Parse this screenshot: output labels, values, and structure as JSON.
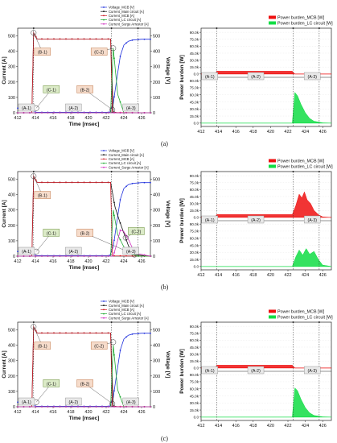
{
  "captions": [
    "(a)",
    "(b)",
    "(c)"
  ],
  "colors": {
    "voltage_mcb": "#2233dd",
    "current_main": "#111111",
    "current_mcb": "#d0202a",
    "current_lc": "#22aa33",
    "current_surge": "#d030c0",
    "power_mcb": "#ee1111",
    "power_lc": "#11dd44",
    "callout_green_fill": "#dcebc8",
    "callout_green_stroke": "#6a8f3a",
    "callout_orange_fill": "#f6dccb",
    "callout_orange_stroke": "#c0784a",
    "callout_gray_fill": "#e8e8e8"
  },
  "chart_data": [
    {
      "type": "line",
      "panel": "a-left",
      "xlabel": "Time [msec]",
      "ylabel": "Current [A]",
      "y2label": "Voltage [V]",
      "xlim": [
        412,
        427
      ],
      "ylim": [
        0,
        550
      ],
      "y2lim": [
        0,
        550
      ],
      "xticks": [
        "412",
        "414",
        "416",
        "418",
        "420",
        "422",
        "424",
        "426"
      ],
      "yticks": [
        "0",
        "100",
        "200",
        "300",
        "400",
        "500"
      ],
      "y2ticks": [
        "0",
        "100",
        "200",
        "300",
        "400",
        "500"
      ],
      "legend_position": "top-right",
      "series": [
        {
          "name": "Voltage_MCB [V]",
          "axis": "right",
          "x": [
            412,
            413.6,
            414,
            422.4,
            422.8,
            423.2,
            423.6,
            424,
            424.5,
            425,
            426,
            427
          ],
          "y": [
            30,
            30,
            3,
            3,
            60,
            220,
            370,
            440,
            465,
            473,
            478,
            478
          ]
        },
        {
          "name": "Current_Main circuit [A]",
          "axis": "left",
          "x": [
            412,
            413.6,
            413.8,
            414.2,
            422.5,
            422.8,
            423.3,
            427
          ],
          "y": [
            0,
            0,
            520,
            480,
            480,
            5,
            0,
            0
          ]
        },
        {
          "name": "Current_MCB [A]",
          "axis": "left",
          "x": [
            412,
            413.6,
            413.8,
            414.2,
            422.5,
            422.7,
            427
          ],
          "y": [
            0,
            0,
            520,
            480,
            480,
            2,
            0
          ]
        },
        {
          "name": "Current_LC circuit [A]",
          "axis": "left",
          "x": [
            412,
            422.5,
            422.8,
            423.3,
            424,
            427
          ],
          "y": [
            0,
            0,
            420,
            120,
            0,
            0
          ]
        },
        {
          "name": "Current_Surge Arrestor [A]",
          "axis": "left",
          "x": [
            412,
            427
          ],
          "y": [
            0,
            0
          ]
        }
      ],
      "callouts": [
        {
          "label": "(B-1)",
          "kind": "orange",
          "at": [
            414.8,
            395
          ],
          "target": [
            413.8,
            520
          ]
        },
        {
          "label": "(C-2)",
          "kind": "orange",
          "at": [
            421.2,
            395
          ],
          "target": [
            422.8,
            420
          ]
        },
        {
          "label": "(C-1)",
          "kind": "green",
          "at": [
            415.8,
            150
          ],
          "target": [
            414.1,
            30
          ]
        },
        {
          "label": "(B-2)",
          "kind": "orange",
          "at": [
            419.6,
            150
          ],
          "target": [
            422.7,
            20
          ]
        }
      ],
      "phases": [
        "(A-1)",
        "(A-2)",
        "(A-3)"
      ]
    },
    {
      "type": "area",
      "panel": "a-right",
      "ylabel": "Power burden [W]",
      "xlim": [
        412,
        427
      ],
      "ylim": [
        -2000,
        92000
      ],
      "xticks": [
        "412",
        "414",
        "416",
        "418",
        "420",
        "422",
        "424",
        "426"
      ],
      "yticks": [
        "0.0",
        "15.0k",
        "30.0k",
        "45.0k",
        "60.0k",
        "75.0k",
        "90.0k"
      ],
      "legend_position": "top-right",
      "series": [
        {
          "name": "Power burden_MCB [W]",
          "x": [
            412,
            413.6,
            413.8,
            422.5,
            422.8,
            427
          ],
          "y": [
            0,
            0,
            6000,
            6000,
            0,
            0
          ]
        },
        {
          "name": "Power burden_LC circuit [W]",
          "x": [
            412,
            422.5,
            422.8,
            423.1,
            423.5,
            424,
            424.5,
            425,
            426,
            427
          ],
          "y": [
            0,
            0,
            65000,
            58000,
            40000,
            22000,
            10000,
            4000,
            500,
            0
          ]
        }
      ],
      "phases": [
        "(A-1)",
        "(A-2)",
        "(A-3)"
      ]
    },
    {
      "type": "line",
      "panel": "b-left",
      "xlabel": "Time [msec]",
      "ylabel": "Current [A]",
      "y2label": "Voltage [V]",
      "xlim": [
        412,
        427
      ],
      "ylim": [
        0,
        550
      ],
      "y2lim": [
        0,
        550
      ],
      "xticks": [
        "412",
        "414",
        "416",
        "418",
        "420",
        "422",
        "424",
        "426"
      ],
      "yticks": [
        "0",
        "100",
        "200",
        "300",
        "400",
        "500"
      ],
      "y2ticks": [
        "0",
        "100",
        "200",
        "300",
        "400",
        "500"
      ],
      "legend_position": "top-right",
      "series": [
        {
          "name": "Voltage_MCB [V]",
          "axis": "right",
          "x": [
            412,
            413.6,
            414,
            422.4,
            422.8,
            423.2,
            423.6,
            424,
            424.5,
            425,
            426,
            427
          ],
          "y": [
            30,
            30,
            3,
            3,
            60,
            220,
            370,
            440,
            465,
            473,
            478,
            478
          ]
        },
        {
          "name": "Current_Main circuit [A]",
          "axis": "left",
          "x": [
            412,
            413.6,
            413.8,
            414.2,
            422.5,
            423,
            423.5,
            424,
            424.5,
            425,
            427
          ],
          "y": [
            0,
            0,
            520,
            480,
            480,
            320,
            230,
            150,
            70,
            10,
            0
          ]
        },
        {
          "name": "Current_MCB [A]",
          "axis": "left",
          "x": [
            412,
            413.6,
            413.8,
            414.2,
            422.5,
            422.7,
            427
          ],
          "y": [
            0,
            0,
            520,
            480,
            480,
            2,
            0
          ]
        },
        {
          "name": "Current_LC circuit [A]",
          "axis": "left",
          "x": [
            412,
            422.5,
            422.8,
            423.3,
            424,
            424.8,
            425.5,
            427
          ],
          "y": [
            0,
            0,
            300,
            140,
            60,
            15,
            0,
            0
          ]
        },
        {
          "name": "Current_Surge Arrestor [A]",
          "axis": "left",
          "x": [
            412,
            422.8,
            423.2,
            423.6,
            424,
            424.6,
            425.2,
            427
          ],
          "y": [
            0,
            0,
            80,
            170,
            160,
            100,
            20,
            0
          ]
        }
      ],
      "callouts": [
        {
          "label": "(B-1)",
          "kind": "orange",
          "at": [
            414.8,
            395
          ],
          "target": [
            413.8,
            520
          ]
        },
        {
          "label": "(C-2)",
          "kind": "green",
          "at": [
            425.4,
            160
          ],
          "target": [
            424.2,
            120
          ]
        },
        {
          "label": "(C-1)",
          "kind": "green",
          "at": [
            415.8,
            150
          ],
          "target": [
            414.1,
            30
          ]
        },
        {
          "label": "(B-2)",
          "kind": "orange",
          "at": [
            419.6,
            150
          ],
          "target": [
            425.2,
            10
          ]
        }
      ],
      "phases": [
        "(A-1)",
        "(A-2)",
        "(A-3)"
      ]
    },
    {
      "type": "area",
      "panel": "b-right",
      "ylabel": "Power burden [W]",
      "xlim": [
        412,
        427
      ],
      "ylim": [
        -2000,
        92000
      ],
      "xticks": [
        "412",
        "414",
        "416",
        "418",
        "420",
        "422",
        "424",
        "426"
      ],
      "yticks": [
        "0.0",
        "15.0k",
        "30.0k",
        "45.0k",
        "60.0k",
        "75.0k",
        "90.0k"
      ],
      "legend_position": "top-right",
      "series": [
        {
          "name": "Power burden_MCB [W]",
          "x": [
            412,
            413.6,
            413.8,
            422.5,
            422.9,
            423.3,
            423.6,
            423.9,
            424.2,
            424.6,
            425,
            425.5,
            426,
            427
          ],
          "y": [
            0,
            0,
            6000,
            6000,
            25000,
            50000,
            42000,
            55000,
            38000,
            30000,
            15000,
            6000,
            1000,
            0
          ]
        },
        {
          "name": "Power burden_LC circuit [W]",
          "x": [
            412,
            422.5,
            422.9,
            423.3,
            423.7,
            424.1,
            424.5,
            425,
            425.5,
            426,
            427
          ],
          "y": [
            0,
            0,
            20000,
            35000,
            24000,
            38000,
            26000,
            32000,
            15000,
            3000,
            0
          ]
        }
      ],
      "phases": [
        "(A-1)",
        "(A-2)",
        "(A-3)"
      ]
    },
    {
      "type": "line",
      "panel": "c-left",
      "xlabel": "Time [msec]",
      "ylabel": "Current [A]",
      "y2label": "Voltage [V]",
      "xlim": [
        412,
        427
      ],
      "ylim": [
        0,
        550
      ],
      "y2lim": [
        0,
        550
      ],
      "xticks": [
        "412",
        "414",
        "416",
        "418",
        "420",
        "422",
        "424",
        "426"
      ],
      "yticks": [
        "0",
        "100",
        "200",
        "300",
        "400",
        "500"
      ],
      "y2ticks": [
        "0",
        "100",
        "200",
        "300",
        "400",
        "500"
      ],
      "legend_position": "top-right",
      "series": [
        {
          "name": "Voltage_MCB [V]",
          "axis": "right",
          "x": [
            412,
            413.6,
            414,
            422.4,
            422.8,
            423.2,
            423.6,
            424,
            424.5,
            425,
            426,
            427
          ],
          "y": [
            30,
            30,
            3,
            3,
            60,
            220,
            370,
            440,
            465,
            473,
            478,
            478
          ]
        },
        {
          "name": "Current_Main circuit [A]",
          "axis": "left",
          "x": [
            412,
            413.6,
            413.8,
            414.2,
            422.5,
            422.8,
            423.3,
            427
          ],
          "y": [
            0,
            0,
            520,
            480,
            480,
            5,
            0,
            0
          ]
        },
        {
          "name": "Current_MCB [A]",
          "axis": "left",
          "x": [
            412,
            413.6,
            413.8,
            414.2,
            422.5,
            422.7,
            427
          ],
          "y": [
            0,
            0,
            520,
            480,
            480,
            2,
            0
          ]
        },
        {
          "name": "Current_LC circuit [A]",
          "axis": "left",
          "x": [
            412,
            422.5,
            422.8,
            423.3,
            424,
            427
          ],
          "y": [
            0,
            0,
            400,
            110,
            0,
            0
          ]
        },
        {
          "name": "Current_Surge Arrestor [A]",
          "axis": "left",
          "x": [
            412,
            427
          ],
          "y": [
            0,
            0
          ]
        }
      ],
      "callouts": [
        {
          "label": "(B-1)",
          "kind": "orange",
          "at": [
            414.8,
            395
          ],
          "target": [
            413.8,
            520
          ]
        },
        {
          "label": "(C-2)",
          "kind": "orange",
          "at": [
            421.2,
            395
          ],
          "target": [
            422.8,
            420
          ]
        },
        {
          "label": "(C-1)",
          "kind": "green",
          "at": [
            415.8,
            150
          ],
          "target": [
            414.1,
            30
          ]
        },
        {
          "label": "(B-2)",
          "kind": "orange",
          "at": [
            419.6,
            150
          ],
          "target": [
            422.7,
            20
          ]
        }
      ],
      "phases": [
        "(A-1)",
        "(A-2)",
        "(A-3)"
      ]
    },
    {
      "type": "area",
      "panel": "c-right",
      "ylabel": "Power burden [W]",
      "xlim": [
        412,
        427
      ],
      "ylim": [
        -2000,
        92000
      ],
      "xticks": [
        "412",
        "414",
        "416",
        "418",
        "420",
        "422",
        "424",
        "426"
      ],
      "yticks": [
        "0.0",
        "15.0k",
        "30.0k",
        "45.0k",
        "60.0k",
        "75.0k",
        "90.0k"
      ],
      "legend_position": "top-right",
      "series": [
        {
          "name": "Power burden_MCB [W]",
          "x": [
            412,
            413.6,
            413.8,
            422.5,
            422.8,
            427
          ],
          "y": [
            0,
            0,
            6000,
            6000,
            0,
            0
          ]
        },
        {
          "name": "Power burden_LC circuit [W]",
          "x": [
            412,
            422.5,
            422.8,
            423.1,
            423.5,
            424,
            424.5,
            425,
            426,
            427
          ],
          "y": [
            0,
            0,
            62000,
            56000,
            38000,
            20000,
            9000,
            3500,
            500,
            0
          ]
        }
      ],
      "phases": [
        "(A-1)",
        "(A-2)",
        "(A-3)"
      ]
    }
  ]
}
